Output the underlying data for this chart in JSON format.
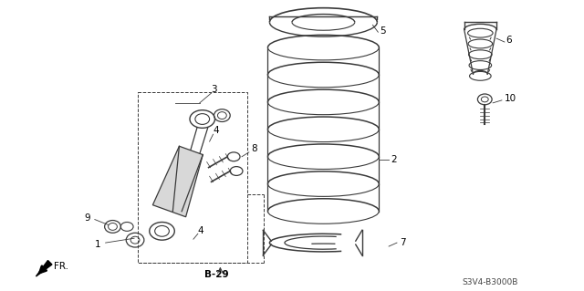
{
  "bg_color": "#ffffff",
  "line_color": "#3a3a3a",
  "text_color": "#000000",
  "fig_width": 6.4,
  "fig_height": 3.19,
  "dpi": 100,
  "title_text": "S3V4-B3000B",
  "label_B29": "B-29",
  "label_FR": "FR."
}
